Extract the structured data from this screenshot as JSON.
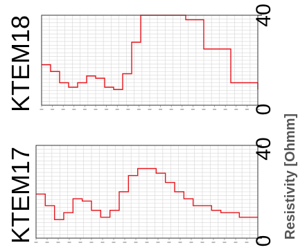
{
  "shared_ylabel": "Resistivity [Ohmm]",
  "chart_data": [
    {
      "type": "line",
      "title": "KTEM18",
      "ylim": [
        0,
        40
      ],
      "y_ticks": [
        "0",
        "40"
      ],
      "grid": true,
      "line_color": "#e8141c",
      "step": true,
      "points": [
        [
          0,
          18
        ],
        [
          1,
          15
        ],
        [
          2,
          10
        ],
        [
          3,
          8
        ],
        [
          4,
          10
        ],
        [
          5,
          13
        ],
        [
          6,
          12
        ],
        [
          7,
          8
        ],
        [
          8,
          7
        ],
        [
          9,
          14
        ],
        [
          10,
          28
        ],
        [
          11,
          40
        ],
        [
          12,
          40
        ],
        [
          13,
          40
        ],
        [
          14,
          40
        ],
        [
          15,
          40
        ],
        [
          16,
          38
        ],
        [
          17,
          38
        ],
        [
          18,
          25
        ],
        [
          19,
          25
        ],
        [
          20,
          25
        ],
        [
          21,
          10
        ],
        [
          22,
          10
        ],
        [
          23,
          10
        ],
        [
          24,
          7
        ]
      ]
    },
    {
      "type": "line",
      "title": "KTEM17",
      "ylim": [
        0,
        40
      ],
      "y_ticks": [
        "0",
        "40"
      ],
      "grid": true,
      "line_color": "#e8141c",
      "step": true,
      "points": [
        [
          0,
          19
        ],
        [
          1,
          14
        ],
        [
          2,
          8
        ],
        [
          3,
          11
        ],
        [
          4,
          17
        ],
        [
          5,
          16
        ],
        [
          6,
          12
        ],
        [
          7,
          9
        ],
        [
          8,
          12
        ],
        [
          9,
          20
        ],
        [
          10,
          27
        ],
        [
          11,
          30
        ],
        [
          12,
          30
        ],
        [
          13,
          28
        ],
        [
          14,
          24
        ],
        [
          15,
          20
        ],
        [
          16,
          17
        ],
        [
          17,
          14
        ],
        [
          18,
          14
        ],
        [
          19,
          12
        ],
        [
          20,
          11
        ],
        [
          21,
          11
        ],
        [
          22,
          9
        ],
        [
          23,
          9
        ],
        [
          24,
          9
        ]
      ]
    }
  ]
}
